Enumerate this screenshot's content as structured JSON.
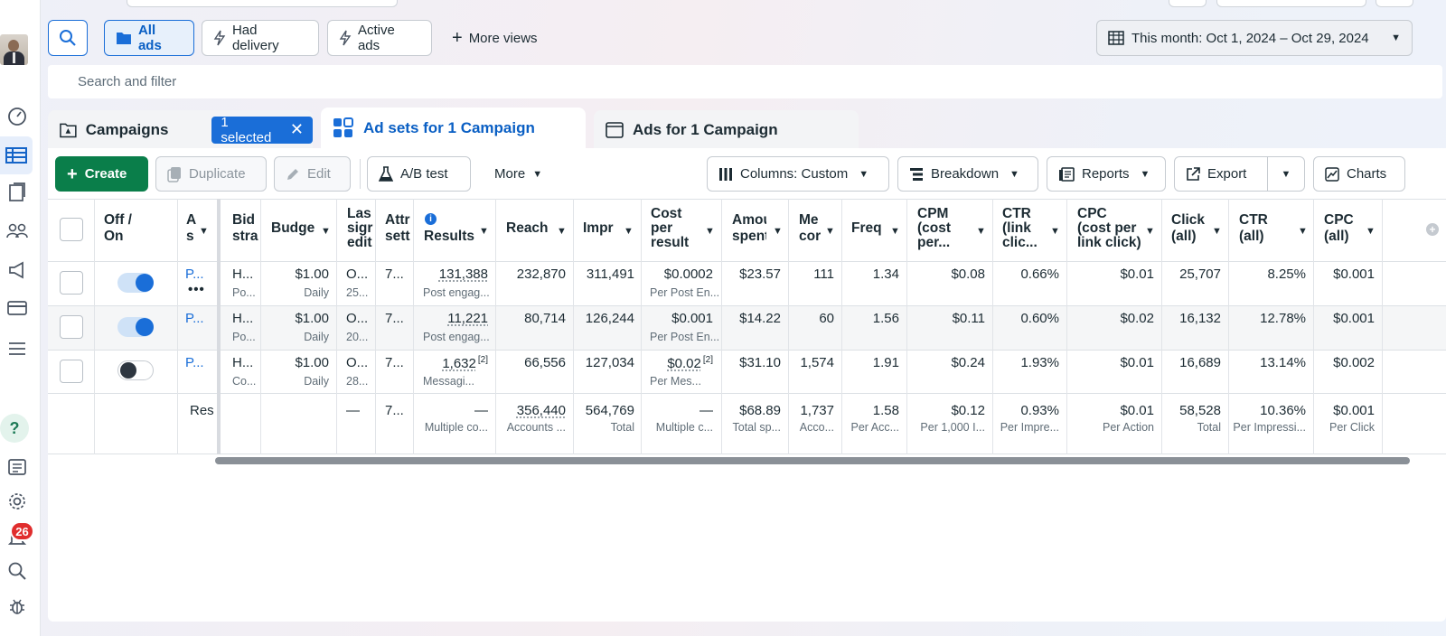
{
  "views": {
    "all_ads": "All ads",
    "had_delivery": "Had delivery",
    "active_ads": "Active ads",
    "more_views": "More views"
  },
  "date_range": "This month: Oct 1, 2024 – Oct 29, 2024",
  "search_placeholder": "Search and filter",
  "tabs": {
    "campaigns": "Campaigns",
    "selected_pill": "1 selected",
    "ad_sets": "Ad sets for 1 Campaign",
    "ads": "Ads for 1 Campaign"
  },
  "toolbar": {
    "create": "Create",
    "duplicate": "Duplicate",
    "edit": "Edit",
    "ab_test": "A/B test",
    "more": "More",
    "columns": "Columns: Custom",
    "breakdown": "Breakdown",
    "reports": "Reports",
    "export": "Export",
    "charts": "Charts"
  },
  "notification_count": "26",
  "table": {
    "headers": {
      "off_on": [
        "Off /",
        "On"
      ],
      "ad_set": [
        "A",
        "s"
      ],
      "bid": [
        "Bid",
        "stra"
      ],
      "budget": [
        "Budge"
      ],
      "last": [
        "Las",
        "sigr",
        "edit"
      ],
      "attr": [
        "Attr",
        "sett"
      ],
      "results": [
        "Results"
      ],
      "reach": [
        "Reach"
      ],
      "impr": [
        "Impr"
      ],
      "cost_per_result": [
        "Cost",
        "per",
        "result"
      ],
      "amount": [
        "Amou",
        "spent"
      ],
      "messaging": [
        "Me",
        "cor"
      ],
      "freq": [
        "Freq"
      ],
      "cpm": [
        "CPM",
        "(cost",
        "per..."
      ],
      "ctr_link": [
        "CTR",
        "(link",
        "clic..."
      ],
      "cpc_link": [
        "CPC",
        "(cost per",
        "link click)"
      ],
      "clicks": [
        "Click",
        "(all)"
      ],
      "ctr_all": [
        "CTR",
        "(all)"
      ],
      "cpc_all": [
        "CPC",
        "(all)"
      ]
    },
    "rows": [
      {
        "toggle_on": true,
        "name": "P...",
        "bid": "H...",
        "bid_sub": "Po...",
        "budget": "$1.00",
        "budget_sub": "Daily",
        "last": "O...",
        "last_sub": "25...",
        "attr": "7...",
        "results": "131,388",
        "results_sub": "Post engag...",
        "reach": "232,870",
        "impr": "311,491",
        "cpr": "$0.0002",
        "cpr_sub": "Per Post En...",
        "amount": "$23.57",
        "messaging": "111",
        "freq": "1.34",
        "cpm": "$0.08",
        "ctr_link": "0.66%",
        "cpc_link": "$0.01",
        "clicks": "25,707",
        "ctr_all": "8.25%",
        "cpc_all": "$0.001"
      },
      {
        "toggle_on": true,
        "name": "P...",
        "bid": "H...",
        "bid_sub": "Po...",
        "budget": "$1.00",
        "budget_sub": "Daily",
        "last": "O...",
        "last_sub": "20...",
        "attr": "7...",
        "results": "11,221",
        "results_sub": "Post engag...",
        "reach": "80,714",
        "impr": "126,244",
        "cpr": "$0.001",
        "cpr_sub": "Per Post En...",
        "amount": "$14.22",
        "messaging": "60",
        "freq": "1.56",
        "cpm": "$0.11",
        "ctr_link": "0.60%",
        "cpc_link": "$0.02",
        "clicks": "16,132",
        "ctr_all": "12.78%",
        "cpc_all": "$0.001"
      },
      {
        "toggle_on": false,
        "name": "P...",
        "bid": "H...",
        "bid_sub": "Co...",
        "budget": "$1.00",
        "budget_sub": "Daily",
        "last": "O...",
        "last_sub": "28...",
        "attr": "7...",
        "results": "1,632",
        "results_sup": "[2]",
        "results_sub": "Messagi...",
        "reach": "66,556",
        "impr": "127,034",
        "cpr": "$0.02",
        "cpr_sup": "[2]",
        "cpr_sub": "Per Mes...",
        "amount": "$31.10",
        "messaging": "1,574",
        "freq": "1.91",
        "cpm": "$0.24",
        "ctr_link": "1.93%",
        "cpc_link": "$0.01",
        "clicks": "16,689",
        "ctr_all": "13.14%",
        "cpc_all": "$0.002"
      }
    ],
    "totals": {
      "label": "Res",
      "last": "—",
      "attr": "7...",
      "results": "—",
      "results_sub": "Multiple co...",
      "reach": "356,440",
      "reach_sub": "Accounts ...",
      "impr": "564,769",
      "impr_sub": "Total",
      "cpr": "—",
      "cpr_sub": "Multiple c...",
      "amount": "$68.89",
      "amount_sub": "Total sp...",
      "messaging": "1,737",
      "messaging_sub": "Acco...",
      "freq": "1.58",
      "freq_sub": "Per Acc...",
      "cpm": "$0.12",
      "cpm_sub": "Per 1,000 I...",
      "ctr_link": "0.93%",
      "ctr_link_sub": "Per Impre...",
      "cpc_link": "$0.01",
      "cpc_link_sub": "Per Action",
      "clicks": "58,528",
      "clicks_sub": "Total",
      "ctr_all": "10.36%",
      "ctr_all_sub": "Per Impressi...",
      "cpc_all": "$0.001",
      "cpc_all_sub": "Per Click"
    }
  }
}
